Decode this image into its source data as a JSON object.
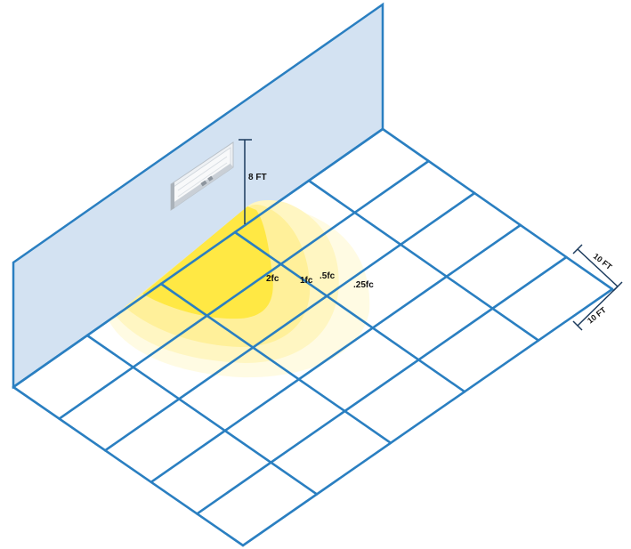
{
  "colors": {
    "wall_fill": "#d3e2f2",
    "grid_line": "#2a7fc1",
    "contour_025fc": "#fffbe3",
    "contour_05fc": "#fff6c2",
    "contour_1fc": "#fff09a",
    "contour_2fc": "#ffe844",
    "dimension_line": "#1b3a5c"
  },
  "fixture": {
    "icon": "wall-pack-light-fixture-icon"
  },
  "mounting_height": {
    "label": "8 FT"
  },
  "contours": [
    {
      "label": "2fc",
      "level_fc": 2
    },
    {
      "label": "1fc",
      "level_fc": 1
    },
    {
      "label": ".5fc",
      "level_fc": 0.5
    },
    {
      "label": ".25fc",
      "level_fc": 0.25
    }
  ],
  "grid_dimensions": [
    {
      "label": "10 FT"
    },
    {
      "label": "10 FT"
    }
  ]
}
